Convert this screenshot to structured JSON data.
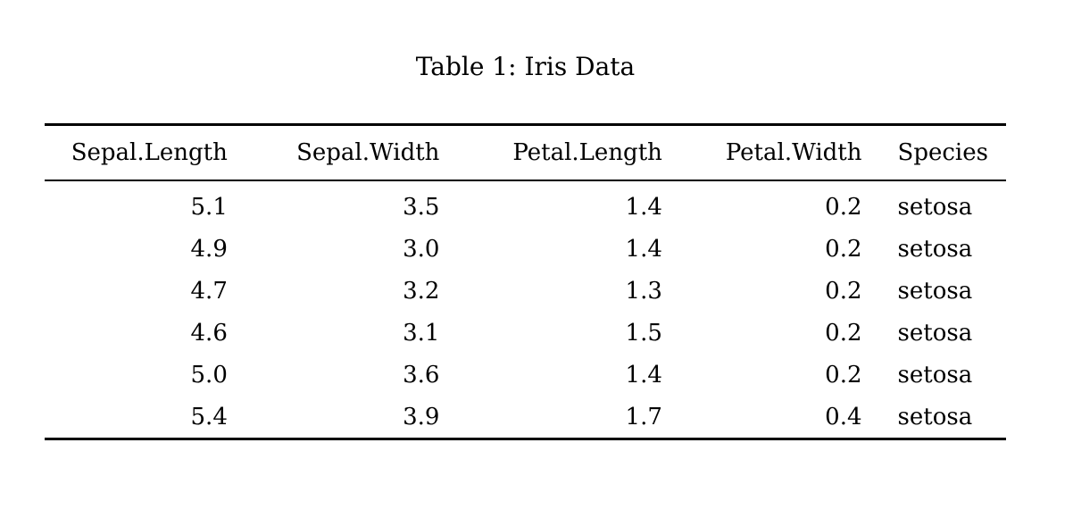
{
  "caption": {
    "text": "Table 1: Iris Data"
  },
  "table": {
    "columns": [
      "Sepal.Length",
      "Sepal.Width",
      "Petal.Length",
      "Petal.Width",
      "Species"
    ],
    "rows": [
      [
        "5.1",
        "3.5",
        "1.4",
        "0.2",
        "setosa"
      ],
      [
        "4.9",
        "3.0",
        "1.4",
        "0.2",
        "setosa"
      ],
      [
        "4.7",
        "3.2",
        "1.3",
        "0.2",
        "setosa"
      ],
      [
        "4.6",
        "3.1",
        "1.5",
        "0.2",
        "setosa"
      ],
      [
        "5.0",
        "3.6",
        "1.4",
        "0.2",
        "setosa"
      ],
      [
        "5.4",
        "3.9",
        "1.7",
        "0.4",
        "setosa"
      ]
    ]
  },
  "chart_data": {
    "type": "table",
    "title": "Table 1: Iris Data",
    "columns": [
      "Sepal.Length",
      "Sepal.Width",
      "Petal.Length",
      "Petal.Width",
      "Species"
    ],
    "rows": [
      [
        5.1,
        3.5,
        1.4,
        0.2,
        "setosa"
      ],
      [
        4.9,
        3.0,
        1.4,
        0.2,
        "setosa"
      ],
      [
        4.7,
        3.2,
        1.3,
        0.2,
        "setosa"
      ],
      [
        4.6,
        3.1,
        1.5,
        0.2,
        "setosa"
      ],
      [
        5.0,
        3.6,
        1.4,
        0.2,
        "setosa"
      ],
      [
        5.4,
        3.9,
        1.7,
        0.4,
        "setosa"
      ]
    ]
  },
  "colors": {
    "background": "#ffffff",
    "text": "#000000",
    "rule": "#000000"
  }
}
